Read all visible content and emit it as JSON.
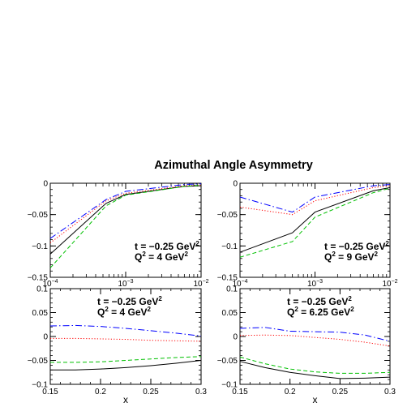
{
  "figure": {
    "title": "Azimuthal Angle Asymmetry"
  },
  "chart_data": [
    {
      "type": "line",
      "panel": "top-left",
      "annotation": [
        "t = −0.25 GeV",
        "Q",
        " = 4 GeV"
      ],
      "x_scale": "log",
      "xlim": [
        0.0001,
        0.01
      ],
      "ylim": [
        -0.15,
        0
      ],
      "xticks": [
        0.0001,
        0.001,
        0.01
      ],
      "xtick_labels": [
        [
          "10",
          "−4"
        ],
        [
          "10",
          "−3"
        ],
        [
          "10",
          "−2"
        ]
      ],
      "yticks": [
        -0.15,
        -0.1,
        -0.05,
        0
      ],
      "ytick_labels": [
        "−0.15",
        "−0.1",
        "−0.05",
        "0"
      ],
      "series": [
        {
          "x": [
            0.0001,
            0.00055,
            0.001,
            0.006,
            0.01
          ],
          "y": [
            -0.113,
            -0.032,
            -0.018,
            -0.005,
            -0.004
          ],
          "color": "#000000",
          "dash": "solid"
        },
        {
          "x": [
            0.0001,
            0.00055,
            0.001,
            0.006,
            0.01
          ],
          "y": [
            -0.095,
            -0.028,
            -0.016,
            -0.004,
            -0.003
          ],
          "color": "#ff0000",
          "dash": "dotted"
        },
        {
          "x": [
            0.0001,
            0.00055,
            0.001,
            0.006,
            0.01
          ],
          "y": [
            -0.088,
            -0.026,
            -0.013,
            -0.002,
            -0.001
          ],
          "color": "#0000ff",
          "dash": "dashdot"
        },
        {
          "x": [
            0.0001,
            0.00055,
            0.001,
            0.006,
            0.01
          ],
          "y": [
            -0.135,
            -0.036,
            -0.019,
            -0.005,
            -0.003
          ],
          "color": "#00c000",
          "dash": "dashed"
        }
      ]
    },
    {
      "type": "line",
      "panel": "top-right",
      "annotation": [
        "t = −0.25 GeV",
        "Q",
        " = 9 GeV"
      ],
      "x_scale": "log",
      "xlim": [
        0.0001,
        0.01
      ],
      "ylim": [
        -0.15,
        0
      ],
      "xticks": [
        0.0001,
        0.001,
        0.01
      ],
      "xtick_labels": [
        [
          "10",
          "−4"
        ],
        [
          "10",
          "−3"
        ],
        [
          "10",
          "−2"
        ]
      ],
      "yticks": [
        -0.15,
        -0.1,
        -0.05,
        0
      ],
      "ytick_labels": [
        "−0.15",
        "−0.1",
        "−0.05",
        "0"
      ],
      "series": [
        {
          "x": [
            0.0001,
            0.0005,
            0.001,
            0.006,
            0.01
          ],
          "y": [
            -0.11,
            -0.079,
            -0.046,
            -0.012,
            -0.007
          ],
          "color": "#000000",
          "dash": "solid"
        },
        {
          "x": [
            0.0001,
            0.0005,
            0.001,
            0.006,
            0.01
          ],
          "y": [
            -0.038,
            -0.05,
            -0.028,
            -0.007,
            -0.004
          ],
          "color": "#ff0000",
          "dash": "dotted"
        },
        {
          "x": [
            0.0001,
            0.0005,
            0.001,
            0.006,
            0.01
          ],
          "y": [
            -0.022,
            -0.046,
            -0.022,
            -0.004,
            -0.002
          ],
          "color": "#0000ff",
          "dash": "dashdot"
        },
        {
          "x": [
            0.0001,
            0.0005,
            0.001,
            0.006,
            0.01
          ],
          "y": [
            -0.118,
            -0.093,
            -0.054,
            -0.015,
            -0.008
          ],
          "color": "#00c000",
          "dash": "dashed"
        }
      ]
    },
    {
      "type": "line",
      "panel": "bottom-left",
      "annotation": [
        "t = −0.25 GeV",
        "Q",
        " = 4 GeV"
      ],
      "x_scale": "linear",
      "xlabel": "x",
      "xlim": [
        0.15,
        0.3
      ],
      "ylim": [
        -0.1,
        0.1
      ],
      "xticks": [
        0.15,
        0.2,
        0.25,
        0.3
      ],
      "xtick_labels": [
        "0.15",
        "0.2",
        "0.25",
        "0.3"
      ],
      "yticks": [
        -0.1,
        -0.05,
        0,
        0.05,
        0.1
      ],
      "ytick_labels": [
        "−0.1",
        "−0.05",
        "0",
        "0.05",
        "0.1"
      ],
      "series": [
        {
          "x": [
            0.15,
            0.175,
            0.2,
            0.225,
            0.25,
            0.275,
            0.3
          ],
          "y": [
            -0.07,
            -0.07,
            -0.068,
            -0.065,
            -0.061,
            -0.056,
            -0.05
          ],
          "color": "#000000",
          "dash": "solid"
        },
        {
          "x": [
            0.15,
            0.175,
            0.2,
            0.225,
            0.25,
            0.275,
            0.3
          ],
          "y": [
            -0.004,
            -0.004,
            -0.005,
            -0.006,
            -0.008,
            -0.009,
            -0.01
          ],
          "color": "#ff0000",
          "dash": "dotted"
        },
        {
          "x": [
            0.15,
            0.175,
            0.2,
            0.225,
            0.25,
            0.275,
            0.3
          ],
          "y": [
            0.022,
            0.023,
            0.021,
            0.017,
            0.012,
            0.007,
            0.001
          ],
          "color": "#0000ff",
          "dash": "dashdot"
        },
        {
          "x": [
            0.15,
            0.175,
            0.2,
            0.225,
            0.25,
            0.275,
            0.3
          ],
          "y": [
            -0.054,
            -0.054,
            -0.053,
            -0.05,
            -0.047,
            -0.044,
            -0.042
          ],
          "color": "#00c000",
          "dash": "dashed"
        }
      ]
    },
    {
      "type": "line",
      "panel": "bottom-right",
      "annotation": [
        "t = −0.25 GeV",
        "Q",
        " = 6.25 GeV"
      ],
      "x_scale": "linear",
      "xlabel": "x",
      "xlim": [
        0.15,
        0.3
      ],
      "ylim": [
        -0.1,
        0.1
      ],
      "xticks": [
        0.15,
        0.2,
        0.25,
        0.3
      ],
      "xtick_labels": [
        "0.15",
        "0.2",
        "0.25",
        "0.3"
      ],
      "yticks": [
        -0.1,
        -0.05,
        0,
        0.05,
        0.1
      ],
      "ytick_labels": [
        "−0.1",
        "−0.05",
        "0",
        "0.05",
        "0.1"
      ],
      "series": [
        {
          "x": [
            0.15,
            0.175,
            0.2,
            0.225,
            0.25,
            0.275,
            0.3
          ],
          "y": [
            -0.052,
            -0.065,
            -0.075,
            -0.082,
            -0.088,
            -0.087,
            -0.085
          ],
          "color": "#000000",
          "dash": "solid"
        },
        {
          "x": [
            0.15,
            0.175,
            0.2,
            0.225,
            0.25,
            0.275,
            0.3
          ],
          "y": [
            0.002,
            0.003,
            0.002,
            -0.002,
            -0.006,
            -0.012,
            -0.02
          ],
          "color": "#ff0000",
          "dash": "dotted"
        },
        {
          "x": [
            0.15,
            0.175,
            0.2,
            0.225,
            0.25,
            0.275,
            0.3
          ],
          "y": [
            0.017,
            0.019,
            0.011,
            0.01,
            0.009,
            0.003,
            -0.01
          ],
          "color": "#0000ff",
          "dash": "dashdot"
        },
        {
          "x": [
            0.15,
            0.175,
            0.2,
            0.225,
            0.25,
            0.275,
            0.3
          ],
          "y": [
            -0.043,
            -0.057,
            -0.068,
            -0.074,
            -0.077,
            -0.077,
            -0.075
          ],
          "color": "#00c000",
          "dash": "dashed"
        }
      ]
    }
  ]
}
